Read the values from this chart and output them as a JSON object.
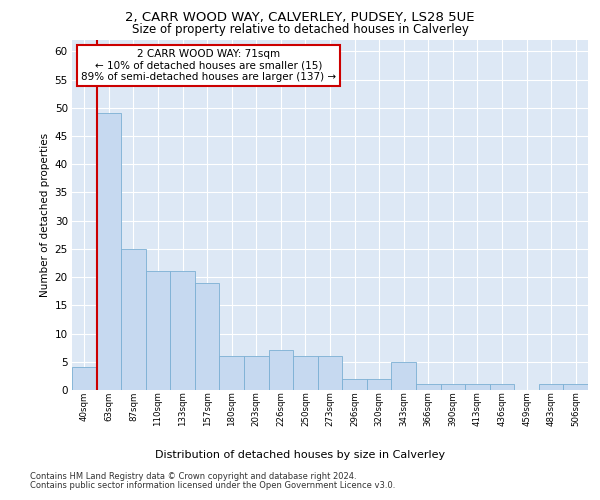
{
  "title_line1": "2, CARR WOOD WAY, CALVERLEY, PUDSEY, LS28 5UE",
  "title_line2": "Size of property relative to detached houses in Calverley",
  "xlabel": "Distribution of detached houses by size in Calverley",
  "ylabel": "Number of detached properties",
  "footer_line1": "Contains HM Land Registry data © Crown copyright and database right 2024.",
  "footer_line2": "Contains public sector information licensed under the Open Government Licence v3.0.",
  "annotation_title": "2 CARR WOOD WAY: 71sqm",
  "annotation_line1": "← 10% of detached houses are smaller (15)",
  "annotation_line2": "89% of semi-detached houses are larger (137) →",
  "bar_labels": [
    "40sqm",
    "63sqm",
    "87sqm",
    "110sqm",
    "133sqm",
    "157sqm",
    "180sqm",
    "203sqm",
    "226sqm",
    "250sqm",
    "273sqm",
    "296sqm",
    "320sqm",
    "343sqm",
    "366sqm",
    "390sqm",
    "413sqm",
    "436sqm",
    "459sqm",
    "483sqm",
    "506sqm"
  ],
  "bar_values": [
    4,
    49,
    25,
    21,
    21,
    19,
    6,
    6,
    7,
    6,
    6,
    2,
    2,
    5,
    1,
    1,
    1,
    1,
    0,
    1,
    1
  ],
  "bar_color": "#c6d9f0",
  "bar_edge_color": "#7bafd4",
  "red_line_bar_index": 1,
  "background_color": "#dde8f5",
  "plot_background": "#dde8f5",
  "grid_color": "#ffffff",
  "annotation_box_color": "#ffffff",
  "annotation_box_edge": "#cc0000",
  "red_line_color": "#cc0000",
  "ylim": [
    0,
    62
  ],
  "yticks": [
    0,
    5,
    10,
    15,
    20,
    25,
    30,
    35,
    40,
    45,
    50,
    55,
    60
  ]
}
